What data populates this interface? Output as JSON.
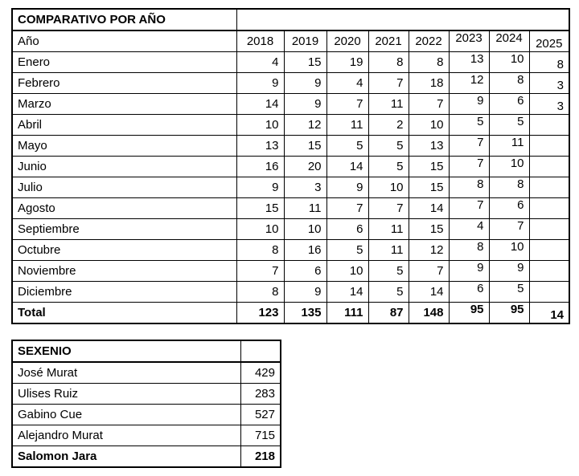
{
  "colors": {
    "border": "#000000",
    "text": "#000000",
    "background": "#ffffff"
  },
  "comparativo": {
    "title": "COMPARATIVO POR AÑO",
    "row_header": "Año",
    "years": [
      "2018",
      "2019",
      "2020",
      "2021",
      "2022",
      "2023",
      "2024",
      "2025"
    ],
    "months": [
      "Enero",
      "Febrero",
      "Marzo",
      "Abril",
      "Mayo",
      "Junio",
      "Julio",
      "Agosto",
      "Septiembre",
      "Octubre",
      "Noviembre",
      "Diciembre"
    ],
    "values": [
      [
        "4",
        "15",
        "19",
        "8",
        "8",
        "13",
        "10",
        "8"
      ],
      [
        "9",
        "9",
        "4",
        "7",
        "18",
        "12",
        "8",
        "3"
      ],
      [
        "14",
        "9",
        "7",
        "11",
        "7",
        "9",
        "6",
        "3"
      ],
      [
        "10",
        "12",
        "11",
        "2",
        "10",
        "5",
        "5",
        ""
      ],
      [
        "13",
        "15",
        "5",
        "5",
        "13",
        "7",
        "11",
        ""
      ],
      [
        "16",
        "20",
        "14",
        "5",
        "15",
        "7",
        "10",
        ""
      ],
      [
        "9",
        "3",
        "9",
        "10",
        "15",
        "8",
        "8",
        ""
      ],
      [
        "15",
        "11",
        "7",
        "7",
        "14",
        "7",
        "6",
        ""
      ],
      [
        "10",
        "10",
        "6",
        "11",
        "15",
        "4",
        "7",
        ""
      ],
      [
        "8",
        "16",
        "5",
        "11",
        "12",
        "8",
        "10",
        ""
      ],
      [
        "7",
        "6",
        "10",
        "5",
        "7",
        "9",
        "9",
        ""
      ],
      [
        "8",
        "9",
        "14",
        "5",
        "14",
        "6",
        "5",
        ""
      ]
    ],
    "total_label": "Total",
    "totals": [
      "123",
      "135",
      "111",
      "87",
      "148",
      "95",
      "95",
      "14"
    ]
  },
  "sexenio": {
    "title": "SEXENIO",
    "rows": [
      {
        "name": "José Murat",
        "value": "429",
        "bold": false
      },
      {
        "name": "Ulises Ruiz",
        "value": "283",
        "bold": false
      },
      {
        "name": "Gabino Cue",
        "value": "527",
        "bold": false
      },
      {
        "name": "Alejandro Murat",
        "value": "715",
        "bold": false
      },
      {
        "name": "Salomon Jara",
        "value": "218",
        "bold": true
      }
    ]
  },
  "chart_data": [
    {
      "type": "table",
      "title": "COMPARATIVO POR AÑO",
      "categories": [
        "Enero",
        "Febrero",
        "Marzo",
        "Abril",
        "Mayo",
        "Junio",
        "Julio",
        "Agosto",
        "Septiembre",
        "Octubre",
        "Noviembre",
        "Diciembre"
      ],
      "series": [
        {
          "name": "2018",
          "values": [
            4,
            9,
            14,
            10,
            13,
            16,
            9,
            15,
            10,
            8,
            7,
            8
          ],
          "total": 123
        },
        {
          "name": "2019",
          "values": [
            15,
            9,
            9,
            12,
            15,
            20,
            3,
            11,
            10,
            16,
            6,
            9
          ],
          "total": 135
        },
        {
          "name": "2020",
          "values": [
            19,
            4,
            7,
            11,
            5,
            14,
            9,
            7,
            6,
            5,
            10,
            14
          ],
          "total": 111
        },
        {
          "name": "2021",
          "values": [
            8,
            7,
            11,
            2,
            5,
            5,
            10,
            7,
            11,
            11,
            5,
            5
          ],
          "total": 87
        },
        {
          "name": "2022",
          "values": [
            8,
            18,
            7,
            10,
            13,
            15,
            15,
            14,
            15,
            12,
            7,
            14
          ],
          "total": 148
        },
        {
          "name": "2023",
          "values": [
            13,
            12,
            9,
            5,
            7,
            7,
            8,
            7,
            4,
            8,
            9,
            6
          ],
          "total": 95
        },
        {
          "name": "2024",
          "values": [
            10,
            8,
            6,
            5,
            11,
            10,
            8,
            6,
            7,
            10,
            9,
            5
          ],
          "total": 95
        },
        {
          "name": "2025",
          "values": [
            8,
            3,
            3,
            null,
            null,
            null,
            null,
            null,
            null,
            null,
            null,
            null
          ],
          "total": 14
        }
      ]
    },
    {
      "type": "table",
      "title": "SEXENIO",
      "categories": [
        "José Murat",
        "Ulises Ruiz",
        "Gabino Cue",
        "Alejandro Murat",
        "Salomon Jara"
      ],
      "values": [
        429,
        283,
        527,
        715,
        218
      ]
    }
  ]
}
